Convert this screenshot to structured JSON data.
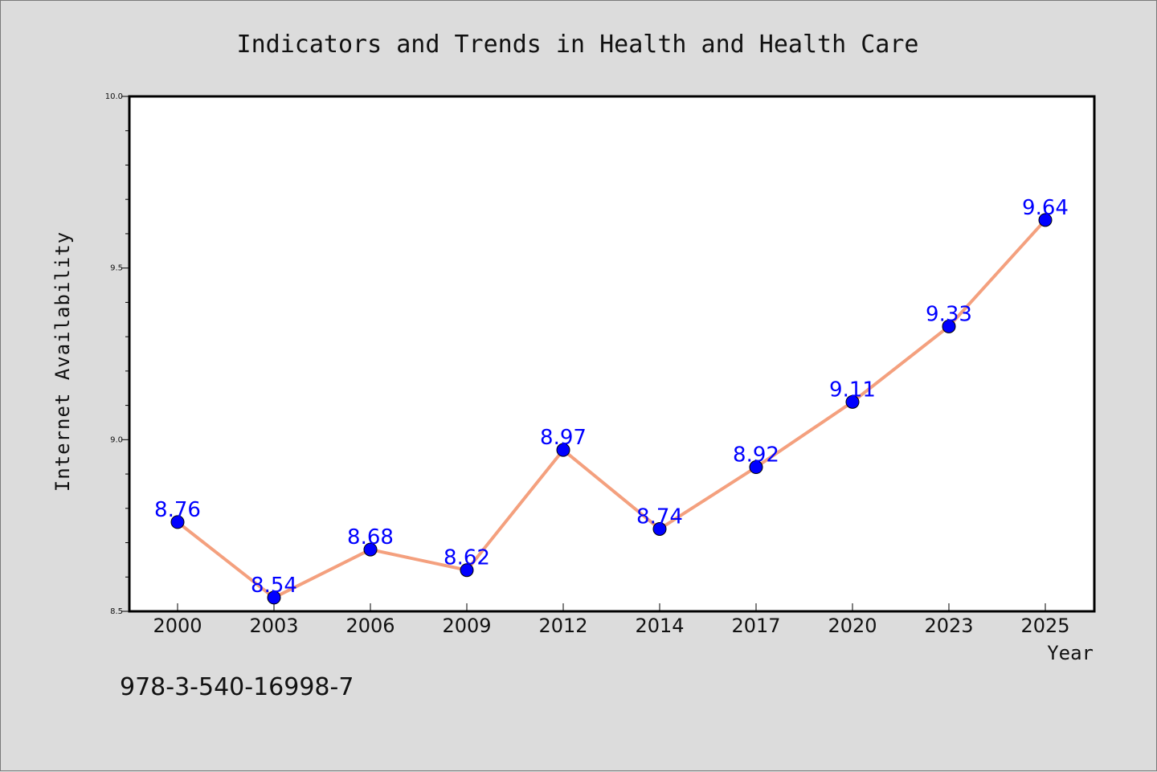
{
  "chart_data": {
    "type": "line",
    "title": "Indicators and Trends in Health and Health Care",
    "xlabel": "Year",
    "ylabel": "Internet Availability",
    "categories": [
      "2000",
      "2003",
      "2006",
      "2009",
      "2012",
      "2014",
      "2017",
      "2020",
      "2023",
      "2025"
    ],
    "series": [
      {
        "values": [
          8.76,
          8.54,
          8.68,
          8.62,
          8.97,
          8.74,
          8.92,
          9.11,
          9.33,
          9.64
        ],
        "labels": [
          "8.76",
          "8.54",
          "8.68",
          "8.62",
          "8.97",
          "8.74",
          "8.92",
          "9.11",
          "9.33",
          "9.64"
        ],
        "line_color": "#f4a07e",
        "marker_color": "#0000ff"
      }
    ],
    "ylim": [
      8.5,
      10.0
    ],
    "yticks": [
      "8.5",
      "9.0",
      "9.5",
      "10.0"
    ],
    "grid": false,
    "data_label_color": "#0000ff"
  },
  "annotation": "978-3-540-16998-7",
  "colors": {
    "background": "#dcdcdc",
    "plot_background": "#ffffff"
  }
}
